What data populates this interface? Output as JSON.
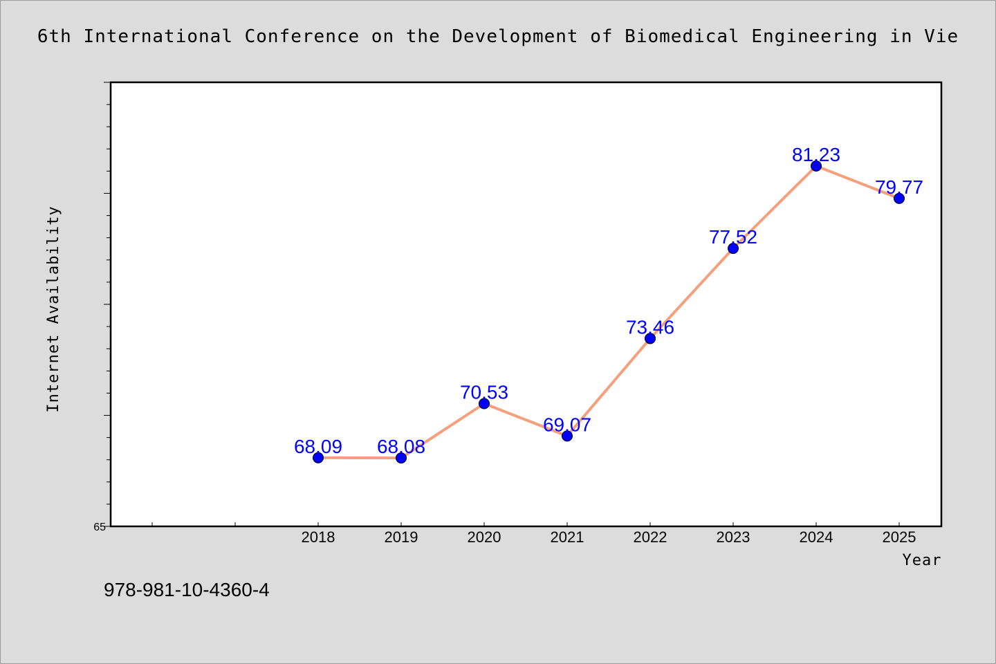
{
  "footnote": "978-981-10-4360-4",
  "chart_data": {
    "type": "line",
    "title": "6th International Conference on the Development of Biomedical Engineering in Vie",
    "xlabel": "Year",
    "ylabel": "Internet Availability",
    "categories": [
      "2018",
      "2019",
      "2020",
      "2021",
      "2022",
      "2023",
      "2024",
      "2025"
    ],
    "values": [
      68.09,
      68.08,
      70.53,
      69.07,
      73.46,
      77.52,
      81.23,
      79.77
    ],
    "data_labels": [
      "68.09",
      "68.08",
      "70.53",
      "69.07",
      "73.46",
      "77.52",
      "81.23",
      "79.77"
    ],
    "y_tick_labels": [
      "65"
    ],
    "ylim": [
      65,
      85
    ],
    "grid": false,
    "legend": "none",
    "colors": {
      "line": "#f4a07c",
      "marker": "#0000ff",
      "data_label": "#0000ff",
      "background": "#dcdcdc",
      "plot_background": "#ffffff"
    }
  }
}
